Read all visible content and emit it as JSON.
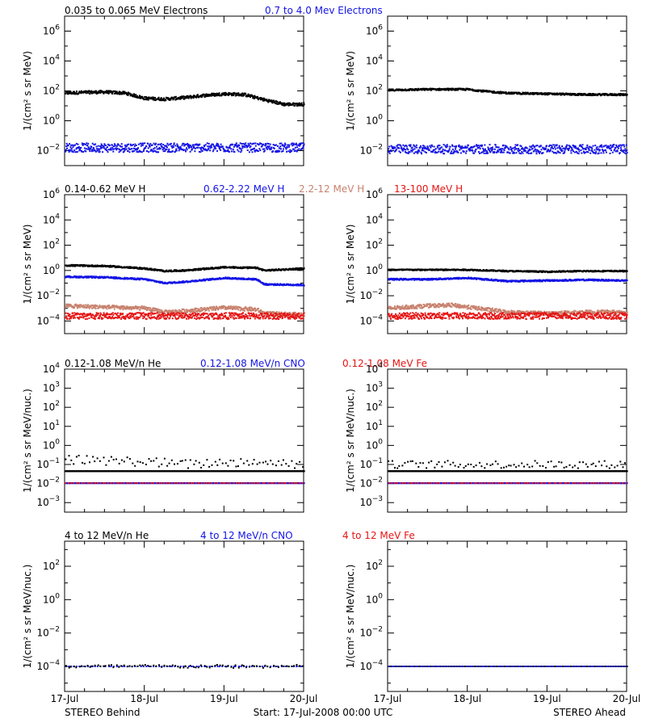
{
  "colors": {
    "black": "#000000",
    "blue": "#1414e6",
    "tan": "#c8826e",
    "red": "#e61414",
    "background": "#ffffff"
  },
  "footer": {
    "left": "STEREO Behind",
    "center": "Start: 17-Jul-2008 00:00 UTC",
    "right": "STEREO Ahead"
  },
  "chart_data": [
    {
      "type": "scatter",
      "row": 1,
      "spacecraft": "STEREO Behind",
      "legend_items": [
        {
          "label": "0.035 to 0.065 MeV Electrons",
          "color": "#000000"
        },
        {
          "label": "0.7 to 4.0 Mev Electrons",
          "color": "#1414e6"
        }
      ],
      "ylabel": "1/(cm² s sr MeV)",
      "yscale": "log",
      "ylim_exp": [
        -3,
        7
      ],
      "ytick_exps": [
        -2,
        0,
        2,
        4,
        6
      ],
      "x_ticks": [
        "17-Jul",
        "18-Jul",
        "19-Jul",
        "20-Jul"
      ],
      "xlim_days": [
        0,
        3
      ],
      "series": [
        {
          "name": "0.035 to 0.065 MeV Electrons",
          "color": "#000000",
          "x": [
            0,
            0.25,
            0.5,
            0.75,
            1.0,
            1.25,
            1.5,
            1.75,
            2.0,
            2.25,
            2.5,
            2.75,
            3.0
          ],
          "y_exp": [
            1.85,
            1.9,
            1.92,
            1.85,
            1.5,
            1.45,
            1.55,
            1.7,
            1.8,
            1.75,
            1.4,
            1.1,
            1.1
          ],
          "scatter": 0.1
        },
        {
          "name": "0.7 to 4.0 Mev Electrons",
          "color": "#1414e6",
          "x": [
            0,
            0.5,
            1.0,
            1.5,
            2.0,
            2.5,
            3.0
          ],
          "y_exp": [
            -1.8,
            -1.8,
            -1.8,
            -1.8,
            -1.8,
            -1.8,
            -1.8
          ],
          "scatter": 0.3
        }
      ]
    },
    {
      "type": "scatter",
      "row": 1,
      "spacecraft": "STEREO Ahead",
      "ylabel": "1/(cm² s sr MeV)",
      "yscale": "log",
      "ylim_exp": [
        -3,
        7
      ],
      "ytick_exps": [
        -2,
        0,
        2,
        4,
        6
      ],
      "x_ticks": [
        "17-Jul",
        "18-Jul",
        "19-Jul",
        "20-Jul"
      ],
      "xlim_days": [
        0,
        3
      ],
      "series": [
        {
          "name": "0.035 to 0.065 MeV Electrons",
          "color": "#000000",
          "x": [
            0,
            0.5,
            1.0,
            1.25,
            1.5,
            2.0,
            2.5,
            3.0
          ],
          "y_exp": [
            2.05,
            2.1,
            2.1,
            1.95,
            1.85,
            1.8,
            1.75,
            1.75
          ],
          "scatter": 0.06
        },
        {
          "name": "0.7 to 4.0 Mev Electrons",
          "color": "#1414e6",
          "x": [
            0,
            0.5,
            1.0,
            1.5,
            2.0,
            2.5,
            3.0
          ],
          "y_exp": [
            -1.9,
            -1.9,
            -1.9,
            -1.9,
            -1.9,
            -1.9,
            -1.9
          ],
          "scatter": 0.3
        }
      ]
    },
    {
      "type": "scatter",
      "row": 2,
      "spacecraft": "STEREO Behind",
      "legend_items": [
        {
          "label": "0.14-0.62 MeV H",
          "color": "#000000"
        },
        {
          "label": "0.62-2.22 MeV H",
          "color": "#1414e6"
        },
        {
          "label": "2.2-12 MeV H",
          "color": "#c8826e"
        },
        {
          "label": "13-100 MeV H",
          "color": "#e61414"
        }
      ],
      "ylabel": "1/(cm² s sr MeV)",
      "yscale": "log",
      "ylim_exp": [
        -5,
        6
      ],
      "ytick_exps": [
        -4,
        -2,
        0,
        2,
        4,
        6
      ],
      "x_ticks": [
        "17-Jul",
        "18-Jul",
        "19-Jul",
        "20-Jul"
      ],
      "xlim_days": [
        0,
        3
      ],
      "series": [
        {
          "name": "0.14-0.62 MeV H",
          "color": "#000000",
          "x": [
            0,
            0.5,
            1.0,
            1.25,
            1.5,
            2.0,
            2.4,
            2.5,
            3.0
          ],
          "y_exp": [
            0.4,
            0.35,
            0.15,
            -0.05,
            0.0,
            0.25,
            0.2,
            0.0,
            0.15
          ],
          "scatter": 0.06
        },
        {
          "name": "0.62-2.22 MeV H",
          "color": "#1414e6",
          "x": [
            0,
            0.5,
            1.0,
            1.25,
            1.5,
            2.0,
            2.4,
            2.5,
            3.0
          ],
          "y_exp": [
            -0.5,
            -0.55,
            -0.7,
            -1.0,
            -0.9,
            -0.6,
            -0.7,
            -1.1,
            -1.15
          ],
          "scatter": 0.06
        },
        {
          "name": "2.2-12 MeV H",
          "color": "#c8826e",
          "x": [
            0,
            0.5,
            1.0,
            1.25,
            1.5,
            2.0,
            2.4,
            2.5,
            3.0
          ],
          "y_exp": [
            -2.8,
            -2.9,
            -3.0,
            -3.3,
            -3.2,
            -2.95,
            -3.1,
            -3.4,
            -3.5
          ],
          "scatter": 0.15
        },
        {
          "name": "13-100 MeV H",
          "color": "#e61414",
          "x": [
            0,
            1.0,
            2.0,
            3.0
          ],
          "y_exp": [
            -3.6,
            -3.6,
            -3.6,
            -3.6
          ],
          "scatter": 0.25
        }
      ]
    },
    {
      "type": "scatter",
      "row": 2,
      "spacecraft": "STEREO Ahead",
      "ylabel": "1/(cm² s sr MeV)",
      "yscale": "log",
      "ylim_exp": [
        -5,
        6
      ],
      "ytick_exps": [
        -4,
        -2,
        0,
        2,
        4,
        6
      ],
      "x_ticks": [
        "17-Jul",
        "18-Jul",
        "19-Jul",
        "20-Jul"
      ],
      "xlim_days": [
        0,
        3
      ],
      "series": [
        {
          "name": "0.14-0.62 MeV H",
          "color": "#000000",
          "x": [
            0,
            0.5,
            1.0,
            1.5,
            2.0,
            2.5,
            3.0
          ],
          "y_exp": [
            0.05,
            0.05,
            0.05,
            -0.05,
            -0.1,
            -0.05,
            -0.05
          ],
          "scatter": 0.05
        },
        {
          "name": "0.62-2.22 MeV H",
          "color": "#1414e6",
          "x": [
            0,
            0.5,
            1.0,
            1.5,
            2.0,
            2.5,
            3.0
          ],
          "y_exp": [
            -0.7,
            -0.7,
            -0.6,
            -0.85,
            -0.8,
            -0.75,
            -0.8
          ],
          "scatter": 0.06
        },
        {
          "name": "2.2-12 MeV H",
          "color": "#c8826e",
          "x": [
            0,
            0.5,
            0.8,
            1.0,
            1.5,
            2.0,
            2.5,
            3.0
          ],
          "y_exp": [
            -3.0,
            -2.8,
            -2.75,
            -2.9,
            -3.3,
            -3.4,
            -3.3,
            -3.3
          ],
          "scatter": 0.15
        },
        {
          "name": "13-100 MeV H",
          "color": "#e61414",
          "x": [
            0,
            1.0,
            2.0,
            3.0
          ],
          "y_exp": [
            -3.6,
            -3.6,
            -3.6,
            -3.6
          ],
          "scatter": 0.25
        }
      ]
    },
    {
      "type": "scatter",
      "row": 3,
      "spacecraft": "STEREO Behind",
      "legend_items": [
        {
          "label": "0.12-1.08 MeV/n He",
          "color": "#000000"
        },
        {
          "label": "0.12-1.08 MeV/n CNO",
          "color": "#1414e6"
        },
        {
          "label": "0.12-1.08 MeV Fe",
          "color": "#e61414"
        }
      ],
      "ylabel": "1/(cm² s sr MeV/nuc.)",
      "yscale": "log",
      "ylim_exp": [
        -3.5,
        4
      ],
      "ytick_exps": [
        -3,
        -2,
        -1,
        0,
        1,
        2,
        3,
        4
      ],
      "x_ticks": [
        "17-Jul",
        "18-Jul",
        "19-Jul",
        "20-Jul"
      ],
      "xlim_days": [
        0,
        3
      ],
      "series": [
        {
          "name": "0.12-1.08 MeV/n He (upper)",
          "color": "#000000",
          "x": [
            0,
            0.5,
            1.0,
            1.5,
            2.0,
            2.4,
            3.0
          ],
          "y_exp": [
            -0.75,
            -0.8,
            -0.85,
            -1.0,
            -0.9,
            -0.85,
            -1.0
          ],
          "scatter": 0.25,
          "sparse": true
        },
        {
          "name": "0.12-1.08 MeV/n He (floor)",
          "color": "#000000",
          "x": [
            0,
            3.0
          ],
          "y_exp": [
            -1.35,
            -1.35
          ],
          "scatter": 0.0
        },
        {
          "name": "0.12-1.08 MeV/n CNO",
          "color": "#1414e6",
          "x": [
            0,
            3.0
          ],
          "y_exp": [
            -1.98,
            -1.98
          ],
          "scatter": 0.0
        },
        {
          "name": "0.12-1.08 MeV Fe",
          "color": "#e61414",
          "x": [
            0,
            3.0
          ],
          "y_exp": [
            -1.98,
            -1.98
          ],
          "scatter": 0.0,
          "sparse": true
        }
      ]
    },
    {
      "type": "scatter",
      "row": 3,
      "spacecraft": "STEREO Ahead",
      "ylabel": "1/(cm² s sr MeV/nuc.)",
      "yscale": "log",
      "ylim_exp": [
        -3.5,
        4
      ],
      "ytick_exps": [
        -3,
        -2,
        -1,
        0,
        1,
        2,
        3,
        4
      ],
      "x_ticks": [
        "17-Jul",
        "18-Jul",
        "19-Jul",
        "20-Jul"
      ],
      "xlim_days": [
        0,
        3
      ],
      "series": [
        {
          "name": "0.12-1.08 MeV/n He (upper)",
          "color": "#000000",
          "x": [
            0,
            1.0,
            2.0,
            3.0
          ],
          "y_exp": [
            -1.0,
            -1.0,
            -1.0,
            -1.0
          ],
          "scatter": 0.2,
          "sparse": true
        },
        {
          "name": "0.12-1.08 MeV/n He (floor)",
          "color": "#000000",
          "x": [
            0,
            3.0
          ],
          "y_exp": [
            -1.35,
            -1.35
          ],
          "scatter": 0.0
        },
        {
          "name": "0.12-1.08 MeV/n CNO",
          "color": "#1414e6",
          "x": [
            0,
            3.0
          ],
          "y_exp": [
            -1.98,
            -1.98
          ],
          "scatter": 0.0
        },
        {
          "name": "0.12-1.08 MeV Fe",
          "color": "#e61414",
          "x": [
            0,
            3.0
          ],
          "y_exp": [
            -1.98,
            -1.98
          ],
          "scatter": 0.0,
          "sparse": true
        }
      ]
    },
    {
      "type": "scatter",
      "row": 4,
      "spacecraft": "STEREO Behind",
      "legend_items": [
        {
          "label": "4 to 12 MeV/n He",
          "color": "#000000"
        },
        {
          "label": "4 to 12 MeV/n CNO",
          "color": "#1414e6"
        },
        {
          "label": "4 to 12 MeV Fe",
          "color": "#e61414"
        }
      ],
      "ylabel": "1/(cm² s sr MeV/nuc.)",
      "yscale": "log",
      "ylim_exp": [
        -5.5,
        3.5
      ],
      "ytick_exps": [
        -4,
        -2,
        0,
        2
      ],
      "x_ticks": [
        "17-Jul",
        "18-Jul",
        "19-Jul",
        "20-Jul"
      ],
      "xlim_days": [
        0,
        3
      ],
      "series": [
        {
          "name": "4 to 12 MeV/n CNO",
          "color": "#1414e6",
          "x": [
            0,
            3.0
          ],
          "y_exp": [
            -4.0,
            -4.0
          ],
          "scatter": 0.0,
          "sparse": true
        },
        {
          "name": "4 to 12 MeV/n He",
          "color": "#000000",
          "x": [
            0,
            3.0
          ],
          "y_exp": [
            -4.0,
            -4.0
          ],
          "scatter": 0.1,
          "sparse": true
        }
      ]
    },
    {
      "type": "scatter",
      "row": 4,
      "spacecraft": "STEREO Ahead",
      "ylabel": "1/(cm² s sr MeV/nuc.)",
      "yscale": "log",
      "ylim_exp": [
        -5.5,
        3.5
      ],
      "ytick_exps": [
        -4,
        -2,
        0,
        2
      ],
      "x_ticks": [
        "17-Jul",
        "18-Jul",
        "19-Jul",
        "20-Jul"
      ],
      "xlim_days": [
        0,
        3
      ],
      "series": [
        {
          "name": "4 to 12 MeV/n He",
          "color": "#000000",
          "x": [
            0,
            3.0
          ],
          "y_exp": [
            -4.0,
            -4.0
          ],
          "scatter": 0.0
        },
        {
          "name": "4 to 12 MeV/n CNO",
          "color": "#1414e6",
          "x": [
            0,
            3.0
          ],
          "y_exp": [
            -4.0,
            -4.0
          ],
          "scatter": 0.0,
          "sparse": true
        }
      ]
    }
  ]
}
